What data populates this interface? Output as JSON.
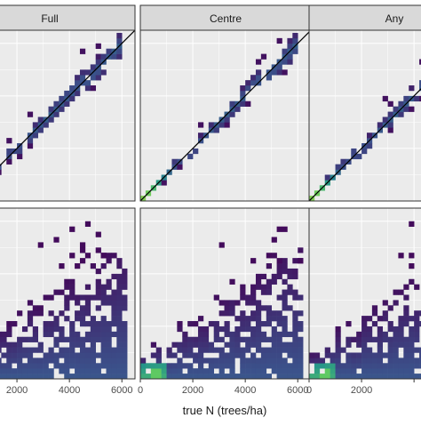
{
  "chart_data": {
    "type": "heatmap",
    "layout": "faceted 2 rows x 3 columns (cropped)",
    "x_axis": {
      "label": "true N (trees/ha)",
      "ticks": [
        0,
        2000,
        4000,
        6000
      ],
      "range": [
        0,
        6500
      ]
    },
    "facets": [
      {
        "label": "Full"
      },
      {
        "label": "Centre"
      },
      {
        "label": "Any"
      }
    ],
    "rows": [
      {
        "kind": "identity",
        "reference_line": "y = x",
        "y_range": [
          0,
          6500
        ]
      },
      {
        "kind": "scatter-density",
        "y_range": [
          0,
          6500
        ]
      }
    ],
    "colormap": "viridis",
    "grid": true,
    "legend": "none"
  },
  "colors": {
    "panel_bg": "#ebebeb",
    "strip_bg": "#d9d9d9",
    "grid": "#ffffff",
    "border": "#333333",
    "tick_text": "#4d4d4d",
    "viridis_dark": "#440154",
    "viridis_mid": "#21918c",
    "viridis_bright": "#fde725"
  }
}
